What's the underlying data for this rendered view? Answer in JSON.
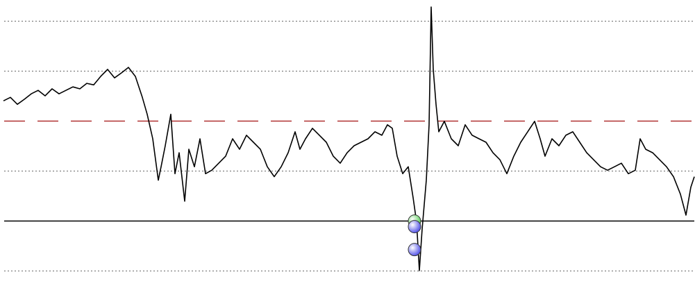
{
  "chart_data": {
    "type": "line",
    "xlim": [
      0,
      1000
    ],
    "ylim": [
      -0.53,
      5.42
    ],
    "yticks": [
      0,
      2,
      4,
      5
    ],
    "grid": true,
    "reference_lines": [
      {
        "value": 3,
        "color": "#b03030",
        "style": "dashed"
      },
      {
        "value": 1,
        "color": "#000000",
        "style": "solid"
      }
    ],
    "series": [
      {
        "color": "#000000",
        "x": [
          5,
          15,
          25,
          35,
          45,
          55,
          65,
          75,
          85,
          95,
          105,
          115,
          125,
          135,
          145,
          155,
          165,
          175,
          185,
          195,
          205,
          212,
          220,
          228,
          232,
          238,
          246,
          252,
          258,
          266,
          272,
          280,
          288,
          296,
          305,
          315,
          325,
          335,
          345,
          355,
          365,
          375,
          385,
          395,
          405,
          415,
          425,
          432,
          440,
          450,
          460,
          470,
          480,
          490,
          500,
          510,
          520,
          530,
          540,
          550,
          558,
          565,
          572,
          580,
          588,
          595,
          600,
          604,
          608,
          614,
          618,
          621,
          624,
          628,
          632,
          640,
          650,
          660,
          670,
          680,
          690,
          700,
          710,
          720,
          730,
          740,
          750,
          760,
          770,
          778,
          785,
          795,
          805,
          815,
          825,
          835,
          845,
          855,
          865,
          875,
          885,
          895,
          905,
          915,
          922,
          930,
          940,
          950,
          960,
          970,
          980,
          988,
          995,
          1000
        ],
        "values": [
          3.4,
          3.47,
          3.33,
          3.43,
          3.54,
          3.61,
          3.5,
          3.64,
          3.54,
          3.61,
          3.68,
          3.64,
          3.75,
          3.72,
          3.89,
          4.03,
          3.86,
          3.96,
          4.07,
          3.89,
          3.47,
          3.13,
          2.64,
          1.81,
          2.08,
          2.5,
          3.13,
          1.94,
          2.36,
          1.39,
          2.43,
          2.08,
          2.64,
          1.94,
          2.01,
          2.15,
          2.29,
          2.64,
          2.43,
          2.71,
          2.57,
          2.43,
          2.08,
          1.88,
          2.08,
          2.36,
          2.78,
          2.43,
          2.64,
          2.85,
          2.71,
          2.57,
          2.29,
          2.15,
          2.36,
          2.5,
          2.57,
          2.64,
          2.78,
          2.71,
          2.92,
          2.85,
          2.29,
          1.94,
          2.08,
          1.46,
          0.97,
          0,
          0.83,
          1.81,
          2.92,
          5.28,
          4.03,
          3.33,
          2.78,
          2.99,
          2.64,
          2.5,
          2.92,
          2.71,
          2.64,
          2.57,
          2.36,
          2.22,
          1.94,
          2.29,
          2.57,
          2.78,
          2.99,
          2.64,
          2.29,
          2.64,
          2.5,
          2.71,
          2.78,
          2.57,
          2.36,
          2.22,
          2.08,
          2.01,
          2.08,
          2.15,
          1.94,
          2.01,
          2.64,
          2.43,
          2.36,
          2.22,
          2.08,
          1.88,
          1.53,
          1.11,
          1.67,
          1.88
        ]
      }
    ],
    "markers": [
      {
        "x": 597,
        "y": 0.99,
        "color": "#5fcf5f"
      },
      {
        "x": 597,
        "y": 0.88,
        "color": "#5a5ae8"
      },
      {
        "x": 597,
        "y": 0.42,
        "color": "#5a5ae8"
      }
    ]
  }
}
